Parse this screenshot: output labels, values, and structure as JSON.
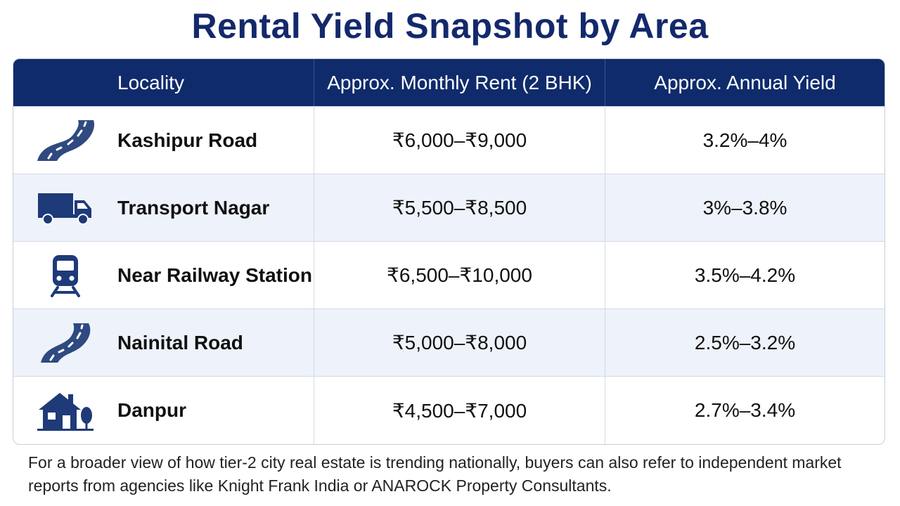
{
  "title": "Rental Yield Snapshot by Area",
  "table": {
    "headers": [
      "Locality",
      "Approx. Monthly Rent (2 BHK)",
      "Approx. Annual Yield"
    ],
    "rows": [
      {
        "icon": "road-icon",
        "locality": "Kashipur Road",
        "rent": "₹6,000–₹9,000",
        "yield": "3.2%–4%"
      },
      {
        "icon": "truck-icon",
        "locality": "Transport Nagar",
        "rent": "₹5,500–₹8,500",
        "yield": "3%–3.8%"
      },
      {
        "icon": "train-icon",
        "locality": "Near Railway Station",
        "rent": "₹6,500–₹10,000",
        "yield": "3.5%–4.2%"
      },
      {
        "icon": "road-icon",
        "locality": "Nainital Road",
        "rent": "₹5,000–₹8,000",
        "yield": "2.5%–3.2%"
      },
      {
        "icon": "house-icon",
        "locality": "Danpur",
        "rent": "₹4,500–₹7,000",
        "yield": "2.7%–3.4%"
      }
    ]
  },
  "colors": {
    "title": "#14296b",
    "header_bg": "#0f2b6b",
    "alt_row_bg": "#eef2fa",
    "icon": "#2e4a80"
  },
  "footnote": "For a broader view of how tier-2 city real estate is trending nationally, buyers can also refer to independent market reports from agencies like Knight Frank India or ANAROCK Property Consultants."
}
